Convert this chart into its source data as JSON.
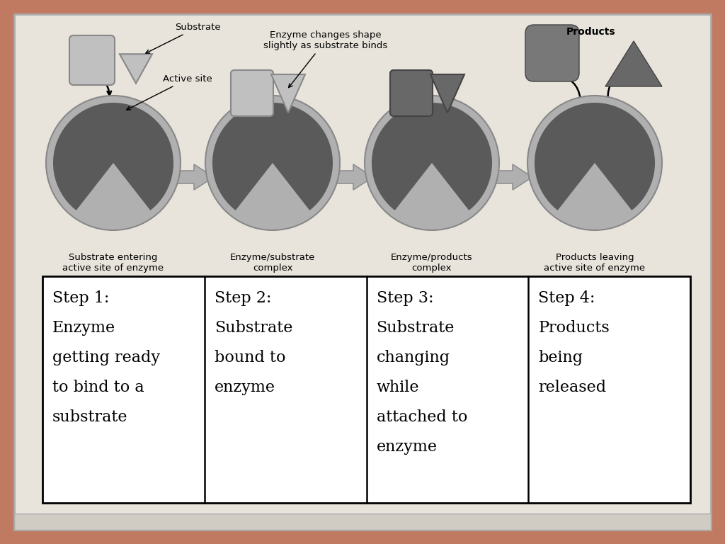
{
  "background_color": "#c17a62",
  "inner_bg_color": "#e8e4dc",
  "border_color": "#b5b0a8",
  "enzyme_dark": "#5a5a5a",
  "enzyme_border": "#8a8a8a",
  "enzyme_light_ring": "#b0b0b0",
  "substrate_light": "#c0c0c0",
  "substrate_dark": "#686868",
  "product_drop_color": "#787878",
  "product_tri_color": "#686868",
  "arrow_fill": "#b0b0b0",
  "arrow_edge": "#909090",
  "text_color": "#000000",
  "steps": [
    "Step 1:\nEnzyme\ngetting ready\nto bind to a\nsubstrate",
    "Step 2:\nSubstrate\nbound to\nenzyme",
    "Step 3:\nSubstrate\nchanging\nwhile\nattached to\nenzyme",
    "Step 4:\nProducts\nbeing\nreleased"
  ],
  "captions": [
    "Substrate entering\nactive site of enzyme",
    "Enzyme/substrate\ncomplex",
    "Enzyme/products\ncomplex",
    "Products leaving\nactive site of enzyme"
  ]
}
